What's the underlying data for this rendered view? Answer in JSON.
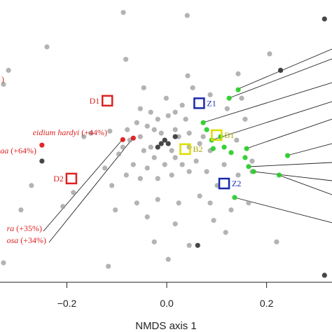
{
  "chart_data": {
    "type": "scatter",
    "xlabel": "NMDS axis 1",
    "xlim": [
      -0.334,
      0.331
    ],
    "ylim": [
      -0.271,
      0.295
    ],
    "xticks": [
      {
        "value": -0.2,
        "label": "−0.2"
      },
      {
        "value": 0,
        "label": "0.0"
      },
      0.2
    ],
    "series": [
      {
        "color": "#9a9a9a",
        "x": [
          -0.087,
          0.041,
          -0.24,
          0.206,
          -0.082,
          -0.317,
          0.228,
          -0.327,
          0.143,
          0.042,
          0.052,
          -0.001,
          0.087,
          0.15,
          0.121,
          -0.053,
          -0.032,
          0.017,
          0.031,
          -0.018,
          0.003,
          0.038,
          -0.06,
          -0.079,
          -0.039,
          -0.025,
          -0.011,
          0.017,
          0.024,
          0.045,
          -0.053,
          -0.074,
          -0.088,
          -0.096,
          -0.046,
          -0.032,
          -0.025,
          0.01,
          0.017,
          0.045,
          0.066,
          0.073,
          0.087,
          0.059,
          0.031,
          -0.004,
          -0.039,
          -0.067,
          -0.081,
          -0.053,
          -0.018,
          0.01,
          0.045,
          0.08,
          0.115,
          0.143,
          0.171,
          0.101,
          0.066,
          0.024,
          -0.018,
          -0.06,
          -0.11,
          -0.124,
          -0.103,
          -0.039,
          0.017,
          0.094,
          0.129,
          0.164,
          0.045,
          -0.025,
          -0.117,
          -0.208,
          -0.187,
          -0.292,
          -0.327,
          -0.166,
          -0.152,
          0.157,
          0.14,
          0.171,
          -0.271,
          -0.046,
          -0.114,
          0.087,
          0.118,
          0.003,
          0.22
        ],
        "y": [
          0.27,
          0.264,
          0.201,
          0.187,
          0.176,
          0.154,
          0.154,
          0.126,
          0.147,
          0.143,
          0.119,
          0.098,
          0.105,
          0.098,
          0.077,
          0.077,
          0.07,
          0.07,
          0.084,
          0.056,
          0.063,
          0.056,
          0.049,
          0.035,
          0.042,
          0.035,
          0.028,
          0.035,
          0.021,
          0.028,
          0.021,
          0.014,
          0.0,
          -0.014,
          -0.007,
          0.0,
          -0.021,
          -0.007,
          -0.021,
          0.0,
          0.007,
          0.021,
          -0.007,
          -0.028,
          -0.035,
          -0.035,
          -0.042,
          -0.035,
          -0.056,
          -0.063,
          -0.063,
          -0.056,
          -0.049,
          -0.049,
          -0.035,
          -0.056,
          -0.049,
          -0.077,
          -0.098,
          -0.112,
          -0.105,
          -0.112,
          -0.077,
          -0.042,
          -0.126,
          -0.14,
          -0.154,
          -0.147,
          -0.126,
          -0.112,
          -0.197,
          -0.19,
          -0.239,
          -0.119,
          -0.091,
          -0.126,
          -0.232,
          0.021,
          0.028,
          0.056,
          0.014,
          -0.028,
          -0.077,
          0.119,
          0.032,
          -0.112,
          -0.171,
          -0.225,
          -0.19
        ]
      },
      {
        "color": "#333333",
        "x": [
          0.316,
          0.228,
          0.003,
          -0.011,
          -0.018,
          -0.004,
          0.062,
          0.316,
          -0.25,
          0.017
        ],
        "y": [
          0.257,
          0.154,
          0.007,
          0.007,
          0.0,
          0.014,
          -0.197,
          -0.257,
          -0.028,
          0.021
        ]
      },
      {
        "color": "#22cc22",
        "x": [
          0.125,
          0.143,
          0.073,
          0.08,
          0.108,
          0.115,
          0.129,
          0.16,
          0.157,
          0.164,
          0.174,
          0.225,
          0.242,
          0.136,
          0.09,
          0.093
        ],
        "y": [
          0.098,
          0.115,
          0.049,
          0.035,
          0.021,
          0.0,
          -0.011,
          -0.003,
          -0.021,
          -0.039,
          -0.049,
          -0.056,
          -0.017,
          -0.101,
          0.014,
          -0.003
        ]
      },
      {
        "color": "#dd1111",
        "x": [
          -0.25,
          -0.088,
          -0.067
        ],
        "y": [
          0.004,
          0.015,
          0.018
        ]
      }
    ],
    "centroids": [
      {
        "label": "D1",
        "color": "#dd2222",
        "x": -0.119,
        "y": 0.093
      },
      {
        "label": "D2",
        "color": "#dd2222",
        "x": -0.191,
        "y": -0.063
      },
      {
        "label": "Z1",
        "color": "#1a2aa8",
        "x": 0.065,
        "y": 0.088
      },
      {
        "label": "Z2",
        "color": "#1a2aa8",
        "x": 0.115,
        "y": -0.073
      },
      {
        "label": "B1",
        "color": "#dddd00",
        "x": 0.1,
        "y": 0.024
      },
      {
        "label": "B2",
        "color": "#dddd00",
        "x": 0.037,
        "y": -0.004
      }
    ],
    "annotations": [
      {
        "species": "",
        "change": ")"
      },
      {
        "species": "eidium hardyi",
        "change": "(+44%)"
      },
      {
        "species": "aa",
        "change": "(+64%)"
      },
      {
        "species": "ra",
        "change": "(+35%)"
      },
      {
        "species": "osa",
        "change": "(+34%)"
      }
    ]
  }
}
